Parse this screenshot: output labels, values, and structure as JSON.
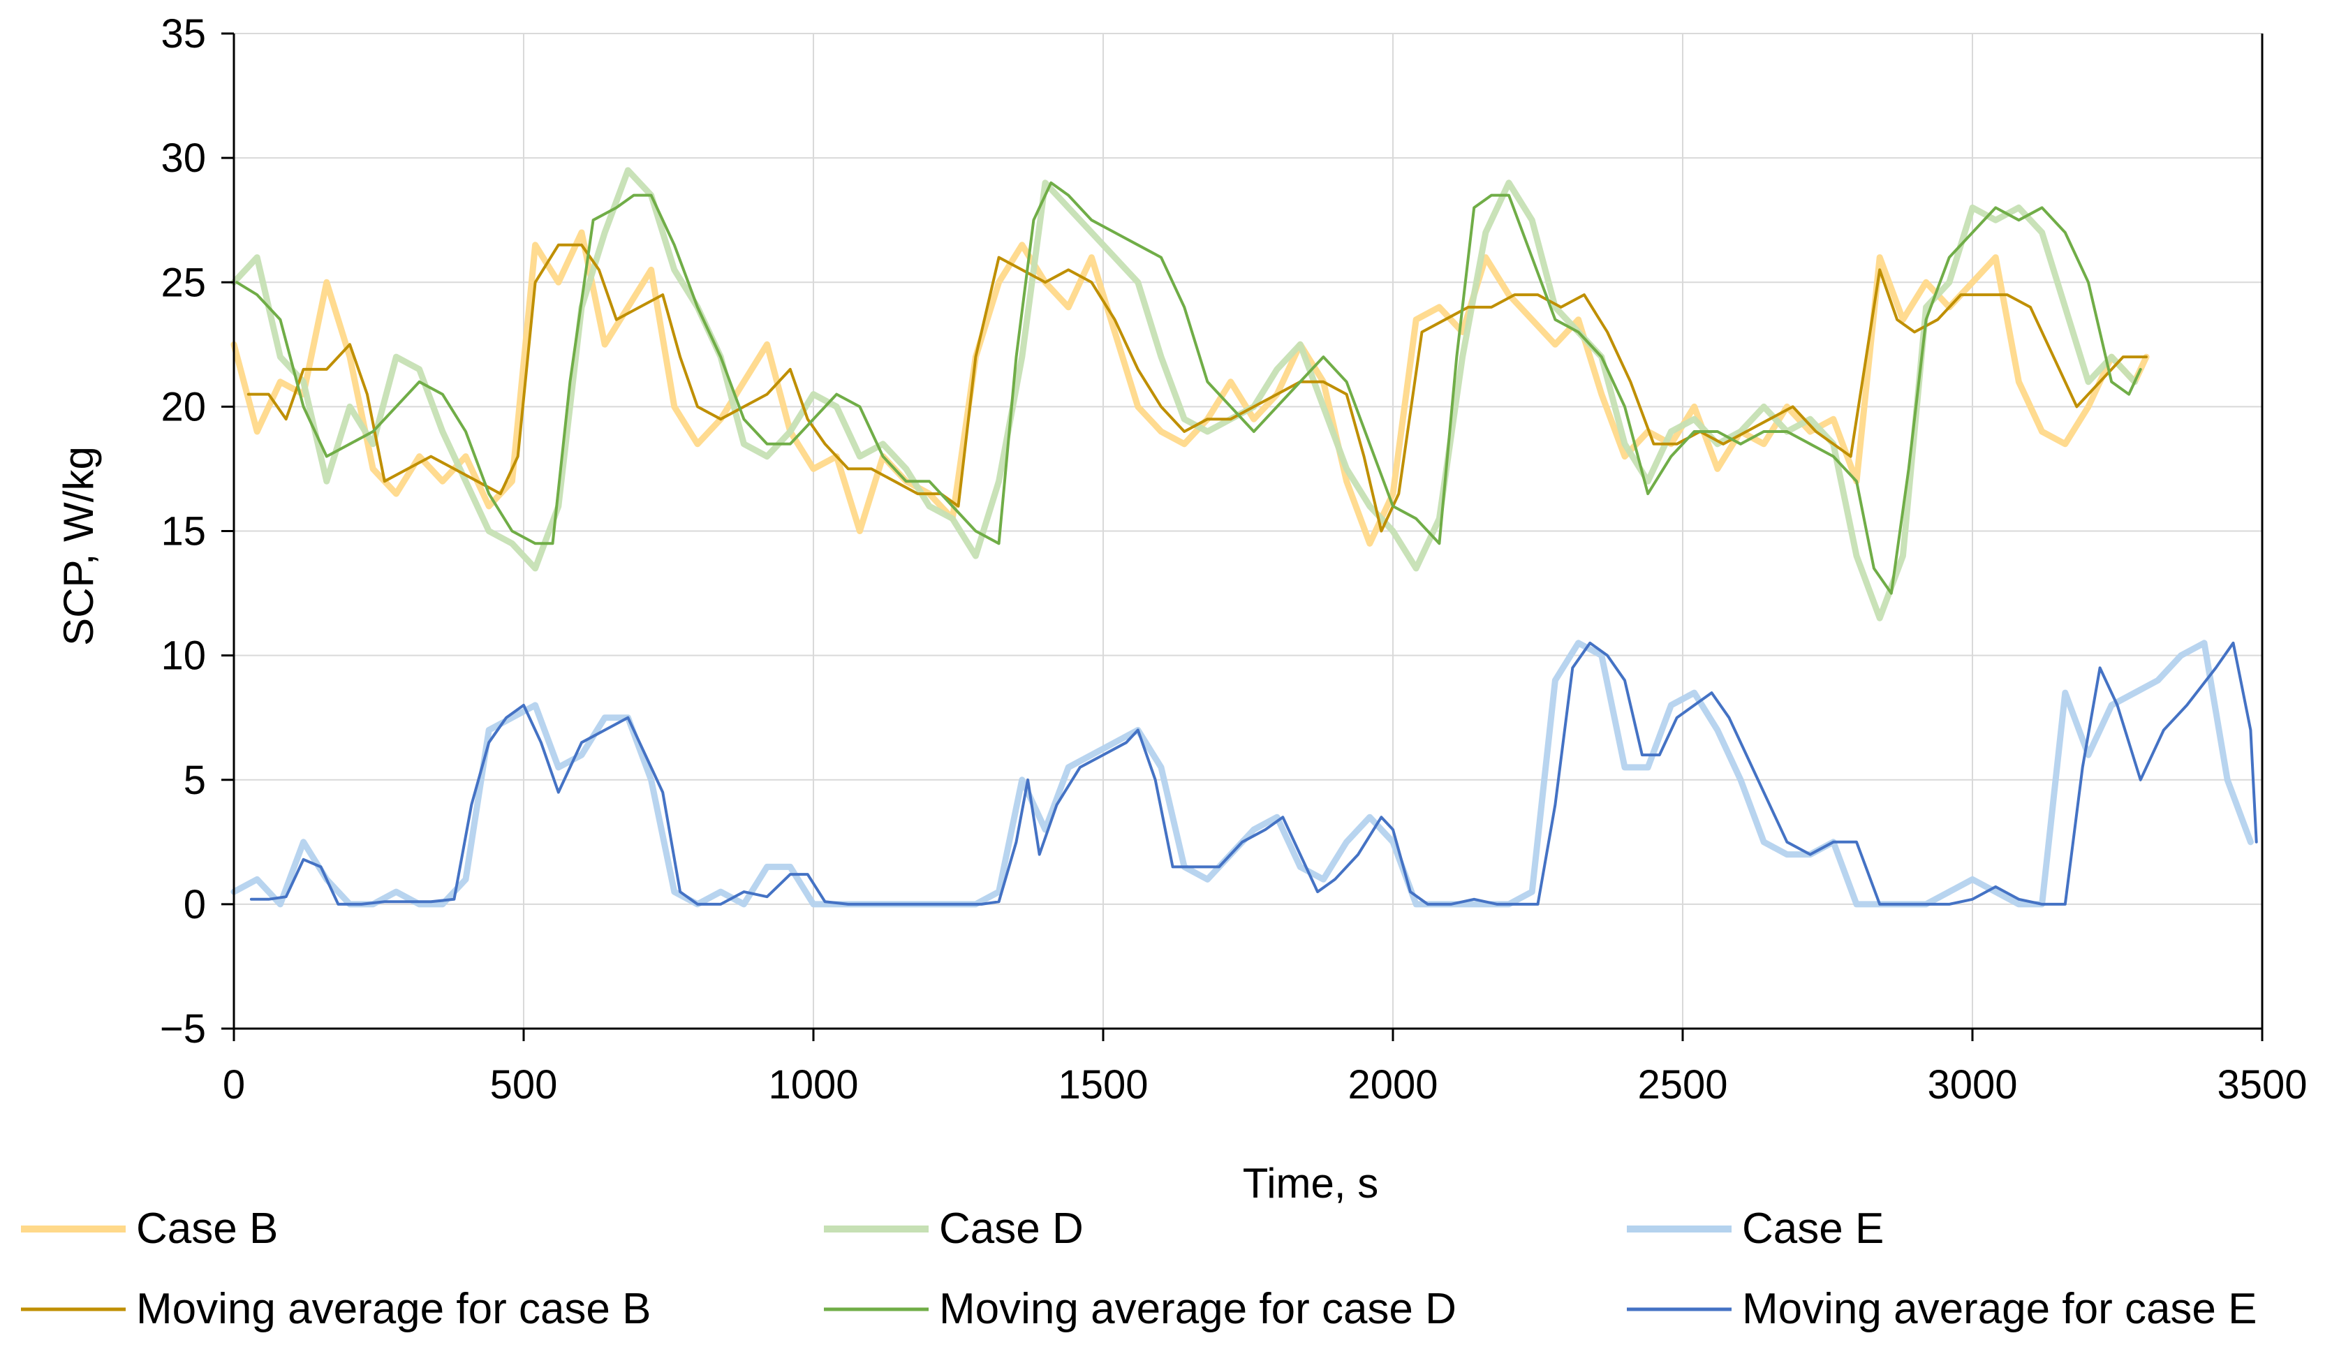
{
  "chart_data": {
    "type": "line",
    "title": "",
    "xlabel": "Time, s",
    "ylabel": "SCP, W/kg",
    "xlim": [
      0,
      3500
    ],
    "ylim": [
      -5,
      35
    ],
    "xticks": [
      0,
      500,
      1000,
      1500,
      2000,
      2500,
      3000,
      3500
    ],
    "yticks": [
      -5,
      0,
      5,
      10,
      15,
      20,
      25,
      30,
      35
    ],
    "xtick_labels": [
      "0",
      "500",
      "1000",
      "1500",
      "2000",
      "2500",
      "3000",
      "3500"
    ],
    "ytick_labels": [
      "−5",
      "0",
      "5",
      "10",
      "15",
      "20",
      "25",
      "30",
      "35"
    ],
    "grid": true,
    "legend_position": "bottom",
    "series": [
      {
        "name": "Case B",
        "color": "#FFD98A",
        "style": "raw",
        "x": [
          0,
          40,
          80,
          120,
          160,
          200,
          240,
          280,
          320,
          360,
          400,
          440,
          480,
          520,
          560,
          600,
          640,
          680,
          720,
          760,
          800,
          840,
          880,
          920,
          960,
          1000,
          1040,
          1080,
          1120,
          1160,
          1200,
          1240,
          1280,
          1320,
          1360,
          1400,
          1440,
          1480,
          1520,
          1560,
          1600,
          1640,
          1680,
          1720,
          1760,
          1800,
          1840,
          1880,
          1920,
          1960,
          2000,
          2040,
          2080,
          2120,
          2160,
          2200,
          2240,
          2280,
          2320,
          2360,
          2400,
          2440,
          2480,
          2520,
          2560,
          2600,
          2640,
          2680,
          2720,
          2760,
          2800,
          2840,
          2880,
          2920,
          2960,
          3000,
          3040,
          3080,
          3120,
          3160,
          3200,
          3240,
          3280,
          3300
        ],
        "y": [
          22.5,
          19.0,
          21.0,
          20.5,
          25.0,
          22.0,
          17.5,
          16.5,
          18.0,
          17.0,
          18.0,
          16.0,
          17.0,
          26.5,
          25.0,
          27.0,
          22.5,
          24.0,
          25.5,
          20.0,
          18.5,
          19.5,
          21.0,
          22.5,
          19.0,
          17.5,
          18.0,
          15.0,
          18.0,
          17.0,
          16.5,
          15.5,
          22.0,
          25.0,
          26.5,
          25.0,
          24.0,
          26.0,
          23.0,
          20.0,
          19.0,
          18.5,
          19.5,
          21.0,
          19.5,
          20.5,
          22.5,
          21.0,
          17.0,
          14.5,
          16.5,
          23.5,
          24.0,
          23.0,
          26.0,
          24.5,
          23.5,
          22.5,
          23.5,
          20.5,
          18.0,
          19.0,
          18.5,
          20.0,
          17.5,
          19.0,
          18.5,
          20.0,
          19.0,
          19.5,
          17.0,
          26.0,
          23.5,
          25.0,
          24.0,
          25.0,
          26.0,
          21.0,
          19.0,
          18.5,
          20.0,
          22.0,
          21.0,
          22.0
        ]
      },
      {
        "name": "Case D",
        "color": "#C6E0B4",
        "style": "raw",
        "x": [
          0,
          40,
          80,
          120,
          160,
          200,
          240,
          280,
          320,
          360,
          400,
          440,
          480,
          520,
          560,
          600,
          640,
          680,
          720,
          760,
          800,
          840,
          880,
          920,
          960,
          1000,
          1040,
          1080,
          1120,
          1160,
          1200,
          1240,
          1280,
          1320,
          1360,
          1400,
          1440,
          1480,
          1520,
          1560,
          1600,
          1640,
          1680,
          1720,
          1760,
          1800,
          1840,
          1880,
          1920,
          1960,
          2000,
          2040,
          2080,
          2120,
          2160,
          2200,
          2240,
          2280,
          2320,
          2360,
          2400,
          2440,
          2480,
          2520,
          2560,
          2600,
          2640,
          2680,
          2720,
          2760,
          2800,
          2840,
          2880,
          2920,
          2960,
          3000,
          3040,
          3080,
          3120,
          3160,
          3200,
          3240,
          3280
        ],
        "y": [
          25.0,
          26.0,
          22.0,
          21.0,
          17.0,
          20.0,
          18.5,
          22.0,
          21.5,
          19.0,
          17.0,
          15.0,
          14.5,
          13.5,
          16.0,
          24.0,
          27.0,
          29.5,
          28.5,
          25.5,
          24.0,
          22.0,
          18.5,
          18.0,
          19.0,
          20.5,
          20.0,
          18.0,
          18.5,
          17.5,
          16.0,
          15.5,
          14.0,
          17.0,
          22.0,
          29.0,
          28.0,
          27.0,
          26.0,
          25.0,
          22.0,
          19.5,
          19.0,
          19.5,
          20.0,
          21.5,
          22.5,
          20.0,
          17.5,
          16.0,
          15.0,
          13.5,
          15.5,
          22.0,
          27.0,
          29.0,
          27.5,
          24.0,
          23.0,
          22.0,
          18.5,
          17.0,
          19.0,
          19.5,
          18.5,
          19.0,
          20.0,
          19.0,
          19.5,
          18.5,
          14.0,
          11.5,
          14.0,
          24.0,
          25.0,
          28.0,
          27.5,
          28.0,
          27.0,
          24.0,
          21.0,
          22.0,
          21.0
        ]
      },
      {
        "name": "Case E",
        "color": "#B4D2EE",
        "style": "raw",
        "x": [
          0,
          40,
          80,
          120,
          160,
          200,
          240,
          280,
          320,
          360,
          400,
          440,
          480,
          520,
          560,
          600,
          640,
          680,
          720,
          760,
          800,
          840,
          880,
          920,
          960,
          1000,
          1040,
          1080,
          1120,
          1160,
          1200,
          1240,
          1280,
          1320,
          1360,
          1400,
          1440,
          1480,
          1520,
          1560,
          1600,
          1640,
          1680,
          1720,
          1760,
          1800,
          1840,
          1880,
          1920,
          1960,
          2000,
          2040,
          2080,
          2120,
          2160,
          2200,
          2240,
          2280,
          2320,
          2360,
          2400,
          2440,
          2480,
          2520,
          2560,
          2600,
          2640,
          2680,
          2720,
          2760,
          2800,
          2840,
          2880,
          2920,
          2960,
          3000,
          3040,
          3080,
          3120,
          3160,
          3200,
          3240,
          3280,
          3320,
          3360,
          3400,
          3440,
          3480
        ],
        "y": [
          0.5,
          1.0,
          0.0,
          2.5,
          1.0,
          0.0,
          0.0,
          0.5,
          0.0,
          0.0,
          1.0,
          7.0,
          7.5,
          8.0,
          5.5,
          6.0,
          7.5,
          7.5,
          5.0,
          0.5,
          0.0,
          0.5,
          0.0,
          1.5,
          1.5,
          0.0,
          0.0,
          0.0,
          0.0,
          0.0,
          0.0,
          0.0,
          0.0,
          0.5,
          5.0,
          3.0,
          5.5,
          6.0,
          6.5,
          7.0,
          5.5,
          1.5,
          1.0,
          2.0,
          3.0,
          3.5,
          1.5,
          1.0,
          2.5,
          3.5,
          2.5,
          0.0,
          0.0,
          0.0,
          0.0,
          0.0,
          0.5,
          9.0,
          10.5,
          10.0,
          5.5,
          5.5,
          8.0,
          8.5,
          7.0,
          5.0,
          2.5,
          2.0,
          2.0,
          2.5,
          0.0,
          0.0,
          0.0,
          0.0,
          0.5,
          1.0,
          0.5,
          0.0,
          0.0,
          8.5,
          6.0,
          8.0,
          8.5,
          9.0,
          10.0,
          10.5,
          5.0,
          2.5
        ]
      },
      {
        "name": "Moving average for case B",
        "color": "#BF8F00",
        "style": "avg",
        "x": [
          25,
          60,
          90,
          120,
          160,
          200,
          230,
          260,
          300,
          340,
          380,
          420,
          460,
          490,
          520,
          560,
          600,
          630,
          660,
          700,
          740,
          770,
          800,
          840,
          880,
          920,
          960,
          990,
          1020,
          1060,
          1100,
          1140,
          1180,
          1220,
          1250,
          1280,
          1320,
          1360,
          1400,
          1440,
          1480,
          1520,
          1560,
          1600,
          1640,
          1680,
          1720,
          1760,
          1800,
          1840,
          1880,
          1920,
          1950,
          1980,
          2010,
          2050,
          2090,
          2130,
          2170,
          2210,
          2250,
          2290,
          2330,
          2370,
          2410,
          2450,
          2490,
          2530,
          2570,
          2610,
          2650,
          2690,
          2730,
          2760,
          2790,
          2810,
          2840,
          2870,
          2900,
          2940,
          2980,
          3020,
          3060,
          3100,
          3140,
          3180,
          3220,
          3260,
          3300
        ],
        "y": [
          20.5,
          20.5,
          19.5,
          21.5,
          21.5,
          22.5,
          20.5,
          17.0,
          17.5,
          18.0,
          17.5,
          17.0,
          16.5,
          18.0,
          25.0,
          26.5,
          26.5,
          25.5,
          23.5,
          24.0,
          24.5,
          22.0,
          20.0,
          19.5,
          20.0,
          20.5,
          21.5,
          19.5,
          18.5,
          17.5,
          17.5,
          17.0,
          16.5,
          16.5,
          16.0,
          22.0,
          26.0,
          25.5,
          25.0,
          25.5,
          25.0,
          23.5,
          21.5,
          20.0,
          19.0,
          19.5,
          19.5,
          20.0,
          20.5,
          21.0,
          21.0,
          20.5,
          18.0,
          15.0,
          16.5,
          23.0,
          23.5,
          24.0,
          24.0,
          24.5,
          24.5,
          24.0,
          24.5,
          23.0,
          21.0,
          18.5,
          18.5,
          19.0,
          18.5,
          19.0,
          19.5,
          20.0,
          19.0,
          18.5,
          18.0,
          21.0,
          25.5,
          23.5,
          23.0,
          23.5,
          24.5,
          24.5,
          24.5,
          24.0,
          22.0,
          20.0,
          21.0,
          22.0,
          22.0
        ]
      },
      {
        "name": "Moving average for case D",
        "color": "#70AD47",
        "style": "avg",
        "x": [
          5,
          40,
          80,
          120,
          160,
          200,
          240,
          280,
          320,
          360,
          400,
          440,
          480,
          520,
          550,
          580,
          620,
          660,
          690,
          720,
          760,
          800,
          840,
          880,
          920,
          960,
          1000,
          1040,
          1080,
          1120,
          1160,
          1200,
          1240,
          1280,
          1320,
          1350,
          1380,
          1410,
          1440,
          1480,
          1520,
          1560,
          1600,
          1640,
          1680,
          1720,
          1760,
          1800,
          1840,
          1880,
          1920,
          1960,
          2000,
          2040,
          2080,
          2110,
          2140,
          2170,
          2200,
          2240,
          2280,
          2320,
          2360,
          2400,
          2440,
          2480,
          2520,
          2560,
          2600,
          2640,
          2680,
          2720,
          2760,
          2800,
          2830,
          2860,
          2890,
          2920,
          2960,
          3000,
          3040,
          3080,
          3120,
          3160,
          3200,
          3240,
          3270,
          3290
        ],
        "y": [
          25.0,
          24.5,
          23.5,
          20.0,
          18.0,
          18.5,
          19.0,
          20.0,
          21.0,
          20.5,
          19.0,
          16.5,
          15.0,
          14.5,
          14.5,
          21.0,
          27.5,
          28.0,
          28.5,
          28.5,
          26.5,
          24.0,
          22.0,
          19.5,
          18.5,
          18.5,
          19.5,
          20.5,
          20.0,
          18.0,
          17.0,
          17.0,
          16.0,
          15.0,
          14.5,
          22.0,
          27.5,
          29.0,
          28.5,
          27.5,
          27.0,
          26.5,
          26.0,
          24.0,
          21.0,
          20.0,
          19.0,
          20.0,
          21.0,
          22.0,
          21.0,
          18.5,
          16.0,
          15.5,
          14.5,
          22.0,
          28.0,
          28.5,
          28.5,
          26.0,
          23.5,
          23.0,
          22.0,
          20.0,
          16.5,
          18.0,
          19.0,
          19.0,
          18.5,
          19.0,
          19.0,
          18.5,
          18.0,
          17.0,
          13.5,
          12.5,
          17.5,
          23.5,
          26.0,
          27.0,
          28.0,
          27.5,
          28.0,
          27.0,
          25.0,
          21.0,
          20.5,
          21.5
        ]
      },
      {
        "name": "Moving average for case E",
        "color": "#4472C4",
        "style": "avg",
        "x": [
          30,
          60,
          90,
          120,
          150,
          180,
          220,
          260,
          300,
          340,
          380,
          410,
          440,
          470,
          500,
          530,
          560,
          600,
          640,
          680,
          710,
          740,
          770,
          800,
          840,
          880,
          920,
          960,
          990,
          1020,
          1060,
          1100,
          1140,
          1180,
          1220,
          1260,
          1290,
          1320,
          1350,
          1370,
          1390,
          1420,
          1460,
          1500,
          1540,
          1560,
          1590,
          1620,
          1660,
          1700,
          1740,
          1780,
          1810,
          1840,
          1870,
          1900,
          1940,
          1980,
          2000,
          2030,
          2060,
          2100,
          2140,
          2180,
          2220,
          2250,
          2280,
          2310,
          2340,
          2370,
          2400,
          2430,
          2460,
          2490,
          2520,
          2550,
          2580,
          2610,
          2640,
          2680,
          2720,
          2760,
          2800,
          2840,
          2880,
          2920,
          2960,
          3000,
          3040,
          3080,
          3120,
          3160,
          3190,
          3220,
          3250,
          3290,
          3330,
          3370,
          3420,
          3450,
          3480,
          3490
        ],
        "y": [
          0.2,
          0.2,
          0.3,
          1.8,
          1.5,
          0.0,
          0.0,
          0.1,
          0.1,
          0.1,
          0.2,
          4.0,
          6.5,
          7.5,
          8.0,
          6.5,
          4.5,
          6.5,
          7.0,
          7.5,
          6.0,
          4.5,
          0.5,
          0.0,
          0.0,
          0.5,
          0.3,
          1.2,
          1.2,
          0.1,
          0.0,
          0.0,
          0.0,
          0.0,
          0.0,
          0.0,
          0.0,
          0.1,
          2.5,
          5.0,
          2.0,
          4.0,
          5.5,
          6.0,
          6.5,
          7.0,
          5.0,
          1.5,
          1.5,
          1.5,
          2.5,
          3.0,
          3.5,
          2.0,
          0.5,
          1.0,
          2.0,
          3.5,
          3.0,
          0.5,
          0.0,
          0.0,
          0.2,
          0.0,
          0.0,
          0.0,
          4.0,
          9.5,
          10.5,
          10.0,
          9.0,
          6.0,
          6.0,
          7.5,
          8.0,
          8.5,
          7.5,
          6.0,
          4.5,
          2.5,
          2.0,
          2.5,
          2.5,
          0.0,
          0.0,
          0.0,
          0.0,
          0.2,
          0.7,
          0.2,
          0.0,
          0.0,
          5.5,
          9.5,
          8.0,
          5.0,
          7.0,
          8.0,
          9.5,
          10.5,
          7.0,
          2.5
        ]
      }
    ]
  }
}
